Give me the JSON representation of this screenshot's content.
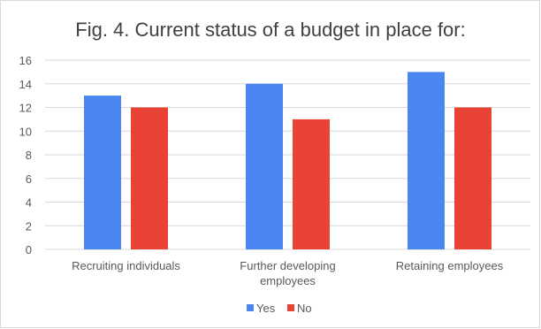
{
  "chart_data": {
    "type": "bar",
    "title": "Fig. 4. Current status of a budget in place for:",
    "xlabel": "",
    "ylabel": "",
    "categories": [
      [
        "Recruiting individuals"
      ],
      [
        "Further developing",
        "employees"
      ],
      [
        "Retaining employees"
      ]
    ],
    "series": [
      {
        "name": "Yes",
        "values": [
          13,
          14,
          15
        ],
        "color": "#4a86f0"
      },
      {
        "name": "No",
        "values": [
          12,
          11,
          12
        ],
        "color": "#e94335"
      }
    ],
    "ylim": [
      0,
      16
    ],
    "yticks": [
      0,
      2,
      4,
      6,
      8,
      10,
      12,
      14,
      16
    ],
    "grid": true,
    "legend_position": "bottom",
    "colors": {
      "grid": "#d9d9d9",
      "text": "#595959",
      "title": "#404040"
    }
  }
}
